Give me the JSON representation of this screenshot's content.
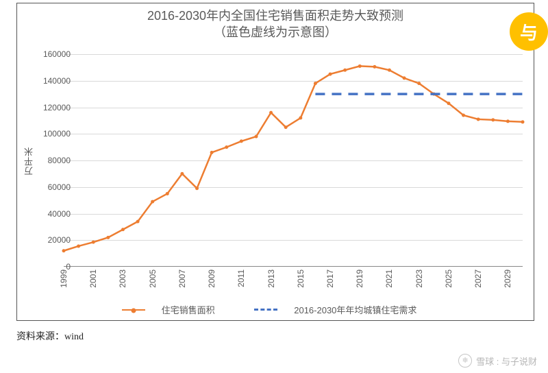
{
  "chart": {
    "type": "line",
    "title_line1": "2016-2030年内全国住宅销售面积走势大致预测",
    "title_line2": "（蓝色虚线为示意图）",
    "title_color": "#595959",
    "title_fontsize": 18,
    "background_color": "#ffffff",
    "border_color": "#555555",
    "grid_color": "#d9d9d9",
    "tick_fontsize": 12,
    "tick_color": "#595959",
    "yaxis_label": "万平米",
    "yaxis_label_fontsize": 13,
    "ylim": [
      0,
      160000
    ],
    "ytick_step": 20000,
    "yticks": [
      "0",
      "20000",
      "40000",
      "60000",
      "80000",
      "100000",
      "120000",
      "140000",
      "160000"
    ],
    "x_years_all": [
      1999,
      2000,
      2001,
      2002,
      2003,
      2004,
      2005,
      2006,
      2007,
      2008,
      2009,
      2010,
      2011,
      2012,
      2013,
      2014,
      2015,
      2016,
      2017,
      2018,
      2019,
      2020,
      2021,
      2022,
      2023,
      2024,
      2025,
      2026,
      2027,
      2028,
      2029,
      2030
    ],
    "xtick_labels": [
      "1999",
      "2001",
      "2003",
      "2005",
      "2007",
      "2009",
      "2011",
      "2013",
      "2015",
      "2017",
      "2019",
      "2021",
      "2023",
      "2025",
      "2027",
      "2029"
    ],
    "series": [
      {
        "name": "住宅销售面积",
        "color": "#ed7d31",
        "line_width": 2.5,
        "marker": "circle",
        "marker_size": 5,
        "style": "solid",
        "data": [
          {
            "x": 1999,
            "y": 12000
          },
          {
            "x": 2000,
            "y": 15500
          },
          {
            "x": 2001,
            "y": 18500
          },
          {
            "x": 2002,
            "y": 22000
          },
          {
            "x": 2003,
            "y": 28000
          },
          {
            "x": 2004,
            "y": 34000
          },
          {
            "x": 2005,
            "y": 49000
          },
          {
            "x": 2006,
            "y": 55000
          },
          {
            "x": 2007,
            "y": 70000
          },
          {
            "x": 2008,
            "y": 59000
          },
          {
            "x": 2009,
            "y": 86000
          },
          {
            "x": 2010,
            "y": 90000
          },
          {
            "x": 2011,
            "y": 94500
          },
          {
            "x": 2012,
            "y": 98000
          },
          {
            "x": 2013,
            "y": 116000
          },
          {
            "x": 2014,
            "y": 105000
          },
          {
            "x": 2015,
            "y": 112000
          },
          {
            "x": 2016,
            "y": 138000
          },
          {
            "x": 2017,
            "y": 145000
          },
          {
            "x": 2018,
            "y": 148000
          },
          {
            "x": 2019,
            "y": 151000
          },
          {
            "x": 2020,
            "y": 150500
          },
          {
            "x": 2021,
            "y": 148000
          },
          {
            "x": 2022,
            "y": 142000
          },
          {
            "x": 2023,
            "y": 138000
          },
          {
            "x": 2024,
            "y": 130000
          },
          {
            "x": 2025,
            "y": 123000
          },
          {
            "x": 2026,
            "y": 114000
          },
          {
            "x": 2027,
            "y": 111000
          },
          {
            "x": 2028,
            "y": 110500
          },
          {
            "x": 2029,
            "y": 109500
          },
          {
            "x": 2030,
            "y": 109000
          }
        ]
      },
      {
        "name": "2016-2030年年均城镇住宅需求",
        "color": "#4472c4",
        "line_width": 3.5,
        "style": "dashed",
        "dash_pattern": "14 10",
        "data": [
          {
            "x": 2016,
            "y": 130000
          },
          {
            "x": 2030,
            "y": 130000
          }
        ]
      }
    ],
    "legend_fontsize": 13
  },
  "source_label": "资料来源：wind",
  "badge_text": "与",
  "badge_bg": "#ffc000",
  "badge_fg": "#ffffff",
  "watermark_text": "雪球 : 与子说财"
}
